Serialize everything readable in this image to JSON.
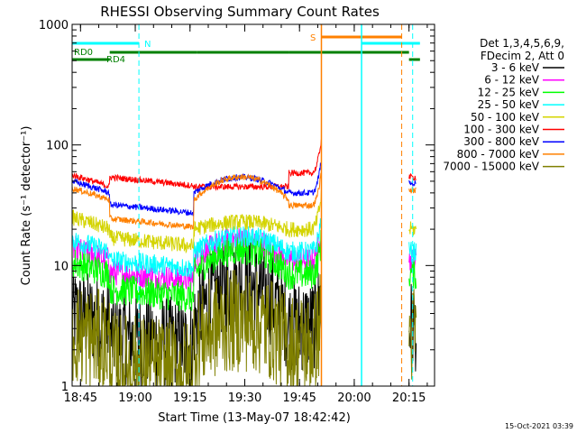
{
  "chart_data": {
    "type": "line",
    "title": "RHESSI Observing Summary Count Rates",
    "xlabel": "Start Time (13-May-07 18:42:42)",
    "ylabel": "Count Rate (s⁻¹ detector⁻¹)",
    "yscale": "log",
    "ylim": [
      1,
      1000
    ],
    "xlim": [
      "18:42:42",
      "20:22:00"
    ],
    "x_ticks": [
      "18:45",
      "19:00",
      "19:15",
      "19:30",
      "19:45",
      "20:00",
      "20:15"
    ],
    "y_ticks": [
      "1",
      "10",
      "100",
      "1000"
    ],
    "legend_header": [
      "Det 1,3,4,5,6,9,",
      "FDecim 2, Att 0"
    ],
    "legend_position": "right",
    "footer_date": "15-Oct-2021 03:39",
    "series": [
      {
        "name": "3 - 6 keV",
        "color": "#000000"
      },
      {
        "name": "6 - 12 keV",
        "color": "#ff00ff"
      },
      {
        "name": "12 - 25 keV",
        "color": "#00ff00"
      },
      {
        "name": "25 - 50 keV",
        "color": "#00ffff"
      },
      {
        "name": "50 - 100 keV",
        "color": "#d4d400"
      },
      {
        "name": "100 - 300 keV",
        "color": "#ff0000"
      },
      {
        "name": "300 - 800 keV",
        "color": "#0000ff"
      },
      {
        "name": "800 - 7000 keV",
        "color": "#ff8000"
      },
      {
        "name": "7000 - 15000 keV",
        "color": "#808000"
      }
    ],
    "annotations": {
      "flags": [
        {
          "label": "N",
          "color": "#00ffff",
          "segments": [
            [
              "18:42:42",
              "19:01"
            ],
            [
              "20:02",
              "20:18"
            ]
          ]
        },
        {
          "label": "S",
          "color": "#ff8000",
          "segments": [
            [
              "19:51",
              "20:13"
            ]
          ]
        },
        {
          "label": "RD0",
          "color": "#008000",
          "segments": [
            [
              "18:42:42",
              "18:53"
            ],
            [
              "20:15",
              "20:18"
            ]
          ]
        },
        {
          "label": "RD4",
          "color": "#008000",
          "segments": [
            [
              "18:53",
              "19:17"
            ],
            [
              "19:17",
              "19:42"
            ],
            [
              "19:42",
              "20:15"
            ]
          ]
        }
      ],
      "vlines": [
        {
          "time": "19:01",
          "color": "#00ffff",
          "style": "dashed"
        },
        {
          "time": "19:51",
          "color": "#ff8000",
          "style": "solid"
        },
        {
          "time": "20:02",
          "color": "#00ffff",
          "style": "solid"
        },
        {
          "time": "20:13",
          "color": "#ff8000",
          "style": "dashed"
        },
        {
          "time": "20:16",
          "color": "#00ffff",
          "style": "dashed"
        }
      ]
    }
  }
}
